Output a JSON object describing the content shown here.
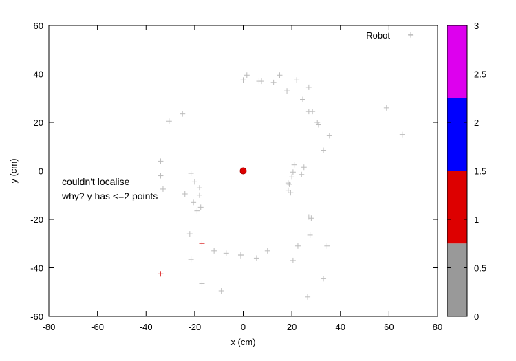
{
  "chart_data": {
    "type": "scatter",
    "title": "",
    "xlabel": "x (cm)",
    "ylabel": "y (cm)",
    "xlim": [
      -80,
      80
    ],
    "ylim": [
      -60,
      60
    ],
    "xticks": [
      -80,
      -60,
      -40,
      -20,
      0,
      20,
      40,
      60,
      80
    ],
    "yticks": [
      -60,
      -40,
      -20,
      0,
      20,
      40,
      60
    ],
    "grid": false,
    "legend": {
      "position": "top-right",
      "entries": [
        {
          "label": "Robot",
          "marker": "plus",
          "color": "#bbbbbb"
        }
      ]
    },
    "annotations": [
      "couldn't localise",
      "why? y has <=2 points"
    ],
    "colorbar": {
      "range": [
        0,
        3
      ],
      "ticks": [
        "0",
        "0.5",
        "1",
        "1.5",
        "2",
        "2.5",
        "3"
      ],
      "bands": [
        {
          "from": 0,
          "to": 0.75,
          "color": "#999999"
        },
        {
          "from": 0.75,
          "to": 1.5,
          "color": "#dd0000"
        },
        {
          "from": 1.5,
          "to": 2.25,
          "color": "#0000ff"
        },
        {
          "from": 2.25,
          "to": 3,
          "color": "#dd00ee"
        }
      ]
    },
    "robot": {
      "x": 0,
      "y": 0,
      "color": "#dd0000"
    },
    "points": [
      [
        0,
        37.5
      ],
      [
        1.5,
        39.5
      ],
      [
        6.5,
        37
      ],
      [
        7.5,
        37
      ],
      [
        12.5,
        36.5
      ],
      [
        15,
        39.5
      ],
      [
        18,
        33
      ],
      [
        22,
        37.5
      ],
      [
        24.5,
        29.5
      ],
      [
        27,
        34.5
      ],
      [
        27,
        24.5
      ],
      [
        28.5,
        24.5
      ],
      [
        30.5,
        20
      ],
      [
        31,
        19
      ],
      [
        35.5,
        14.5
      ],
      [
        33,
        8.5
      ],
      [
        -25,
        23.5
      ],
      [
        -30.5,
        20.5
      ],
      [
        -34,
        4
      ],
      [
        -34,
        -2
      ],
      [
        -33,
        -7.5
      ],
      [
        -21.5,
        -1
      ],
      [
        -20,
        -4.5
      ],
      [
        -18,
        -7
      ],
      [
        -18,
        -10
      ],
      [
        -24,
        -9.5
      ],
      [
        -20.5,
        -13
      ],
      [
        -17.5,
        -15
      ],
      [
        -19,
        -16.5
      ],
      [
        21,
        2.5
      ],
      [
        25,
        1.5
      ],
      [
        20.5,
        -0.5
      ],
      [
        20,
        -2.5
      ],
      [
        19,
        -5.5
      ],
      [
        18.5,
        -5
      ],
      [
        24,
        -1.5
      ],
      [
        18.5,
        -8
      ],
      [
        19.5,
        -9
      ],
      [
        27,
        -19
      ],
      [
        28,
        -19.5
      ],
      [
        27.5,
        -26.5
      ],
      [
        22.5,
        -31
      ],
      [
        34.5,
        -31
      ],
      [
        -22,
        -26
      ],
      [
        -12,
        -33
      ],
      [
        -7,
        -34
      ],
      [
        -1,
        -34.5
      ],
      [
        -1,
        -35
      ],
      [
        5.5,
        -36
      ],
      [
        10,
        -33
      ],
      [
        20.5,
        -37
      ],
      [
        -21.5,
        -36.5
      ],
      [
        -17,
        -46.5
      ],
      [
        -9,
        -49.5
      ],
      [
        33,
        -44.5
      ],
      [
        26.5,
        -52
      ],
      [
        59,
        26
      ],
      [
        65.5,
        15
      ],
      [
        69,
        56
      ]
    ],
    "colored_points": [
      {
        "x": -17,
        "y": -30,
        "value": 1
      },
      {
        "x": -34,
        "y": -42.5,
        "value": 0.9
      }
    ]
  }
}
